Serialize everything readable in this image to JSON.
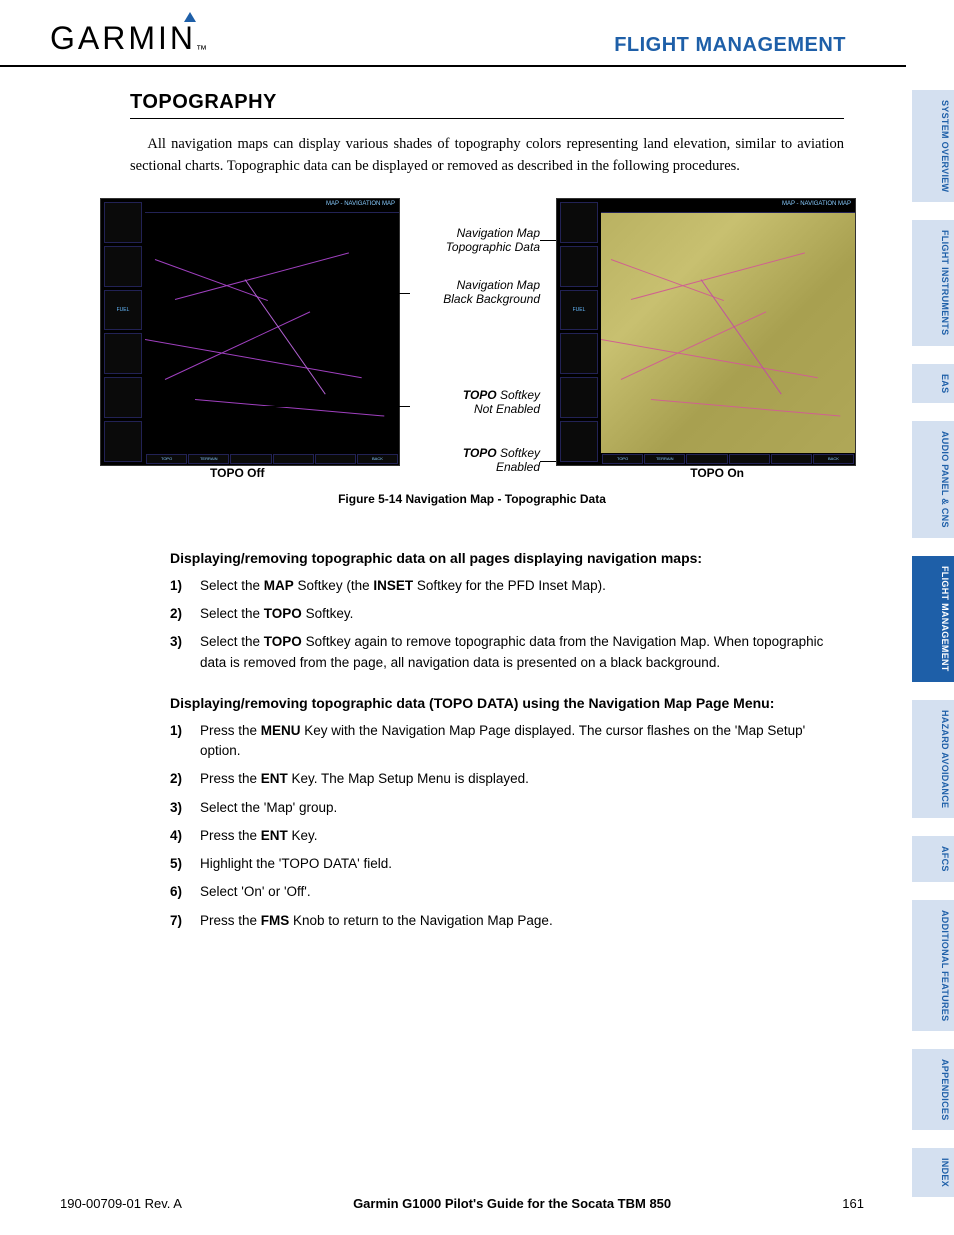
{
  "header": {
    "logo_text": "GARMIN",
    "section": "FLIGHT MANAGEMENT"
  },
  "side_tabs": [
    {
      "label": "SYSTEM OVERVIEW",
      "active": false
    },
    {
      "label": "FLIGHT INSTRUMENTS",
      "active": false
    },
    {
      "label": "EAS",
      "active": false
    },
    {
      "label": "AUDIO PANEL & CNS",
      "active": false
    },
    {
      "label": "FLIGHT MANAGEMENT",
      "active": true
    },
    {
      "label": "HAZARD AVOIDANCE",
      "active": false
    },
    {
      "label": "AFCS",
      "active": false
    },
    {
      "label": "ADDITIONAL FEATURES",
      "active": false
    },
    {
      "label": "APPENDICES",
      "active": false
    },
    {
      "label": "INDEX",
      "active": false
    }
  ],
  "section_title": "TOPOGRAPHY",
  "intro": "All navigation maps can display various shades of topography colors representing land elevation, similar to aviation sectional charts.  Topographic data can be displayed or removed as described in the following procedures.",
  "figure": {
    "callout1_l1": "Navigation Map",
    "callout1_l2": "Topographic Data",
    "callout2_l1": "Navigation Map",
    "callout2_l2": "Black Background",
    "callout3_l1": "TOPO",
    "callout3_l2": " Softkey",
    "callout3_l3": "Not Enabled",
    "callout4_l1": "TOPO",
    "callout4_l2": " Softkey",
    "callout4_l3": "Enabled",
    "label_left": "TOPO Off",
    "label_right": "TOPO On",
    "caption": "Figure 5-14  Navigation Map - Topographic Data",
    "map_title": "MAP - NAVIGATION MAP"
  },
  "proc1": {
    "heading": "Displaying/removing topographic data on all pages displaying navigation maps:",
    "steps": [
      {
        "n": "1)",
        "html": "Select the <b>MAP</b> Softkey (the <b>INSET</b> Softkey for the PFD Inset Map)."
      },
      {
        "n": "2)",
        "html": "Select the <b>TOPO</b> Softkey."
      },
      {
        "n": "3)",
        "html": "Select the <b>TOPO</b> Softkey again to remove topographic data from the Navigation Map.  When topographic data is removed from the page, all navigation data is presented on a black background."
      }
    ]
  },
  "proc2": {
    "heading": "Displaying/removing topographic data (TOPO DATA) using the Navigation Map Page Menu:",
    "steps": [
      {
        "n": "1)",
        "html": "Press the <b>MENU</b> Key with the Navigation Map Page displayed.  The cursor flashes on the 'Map Setup' option."
      },
      {
        "n": "2)",
        "html": "Press the <b>ENT</b> Key.  The Map Setup Menu is displayed."
      },
      {
        "n": "3)",
        "html": "Select the 'Map' group."
      },
      {
        "n": "4)",
        "html": "Press the <b>ENT</b> Key."
      },
      {
        "n": "5)",
        "html": "Highlight the 'TOPO DATA' field."
      },
      {
        "n": "6)",
        "html": "Select 'On' or 'Off'."
      },
      {
        "n": "7)",
        "html": "Press the <b>FMS</b> Knob to return to the Navigation Map Page."
      }
    ]
  },
  "footer": {
    "left": "190-00709-01  Rev. A",
    "center": "Garmin G1000 Pilot's Guide for the Socata TBM 850",
    "page": "161"
  },
  "colors": {
    "brand_blue": "#1e5fa8",
    "tab_inactive_bg": "#d4e0f0",
    "topo_color": "#b8b060",
    "route_color": "#a040c0"
  }
}
